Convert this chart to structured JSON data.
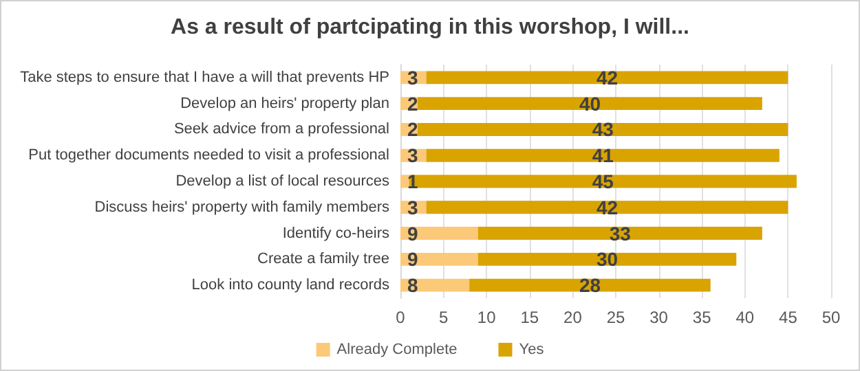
{
  "chart_data": {
    "type": "bar",
    "orientation": "horizontal",
    "stacked": true,
    "title": "As a result of partcipating in this worshop, I will...",
    "categories": [
      "Take steps to ensure that I have a will that prevents HP",
      "Develop an heirs' property plan",
      "Seek advice from a professional",
      "Put together documents needed to visit a professional",
      "Develop a list of local resources",
      "Discuss heirs' property with family members",
      "Identify co-heirs",
      "Create a family tree",
      "Look into county land records"
    ],
    "series": [
      {
        "name": "Already Complete",
        "color": "#fbc978",
        "values": [
          3,
          2,
          2,
          3,
          1,
          3,
          9,
          9,
          8
        ]
      },
      {
        "name": "Yes",
        "color": "#d9a300",
        "values": [
          42,
          40,
          43,
          41,
          45,
          42,
          33,
          30,
          28
        ]
      }
    ],
    "xlim": [
      0,
      50
    ],
    "xticks": [
      0,
      5,
      10,
      15,
      20,
      25,
      30,
      35,
      40,
      45,
      50
    ],
    "grid": "x",
    "legend": "bottom",
    "data_labels": true
  }
}
